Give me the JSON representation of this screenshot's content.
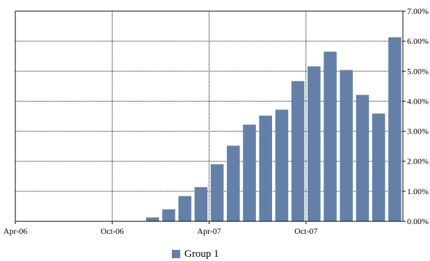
{
  "chart_data": {
    "type": "bar",
    "title": "",
    "xlabel": "",
    "ylabel": "",
    "x_tick_labels": [
      "Apr-06",
      "Oct-06",
      "Apr-07",
      "Oct-07"
    ],
    "y_tick_labels": [
      "0.00%",
      "1.00%",
      "2.00%",
      "3.00%",
      "4.00%",
      "5.00%",
      "6.00%",
      "7.00%"
    ],
    "ylim": [
      0,
      7
    ],
    "y_unit": "%",
    "y_axis_side": "right",
    "grid": true,
    "grid_style": "dotted",
    "legend_position": "bottom",
    "categories": [
      "Apr-06",
      "May-06",
      "Jun-06",
      "Jul-06",
      "Aug-06",
      "Sep-06",
      "Oct-06",
      "Nov-06",
      "Dec-06",
      "Jan-07",
      "Feb-07",
      "Mar-07",
      "Apr-07",
      "May-07",
      "Jun-07",
      "Jul-07",
      "Aug-07",
      "Sep-07",
      "Oct-07",
      "Nov-07",
      "Dec-07",
      "Jan-08",
      "Feb-08",
      "Mar-08"
    ],
    "series": [
      {
        "name": "Group 1",
        "color": "#6580a8",
        "values": [
          0,
          0,
          0,
          0,
          0,
          0,
          0,
          0,
          0.13,
          0.4,
          0.84,
          1.14,
          1.9,
          2.52,
          3.22,
          3.52,
          3.72,
          4.67,
          5.16,
          5.65,
          5.04,
          4.21,
          3.59,
          6.13
        ]
      }
    ]
  }
}
